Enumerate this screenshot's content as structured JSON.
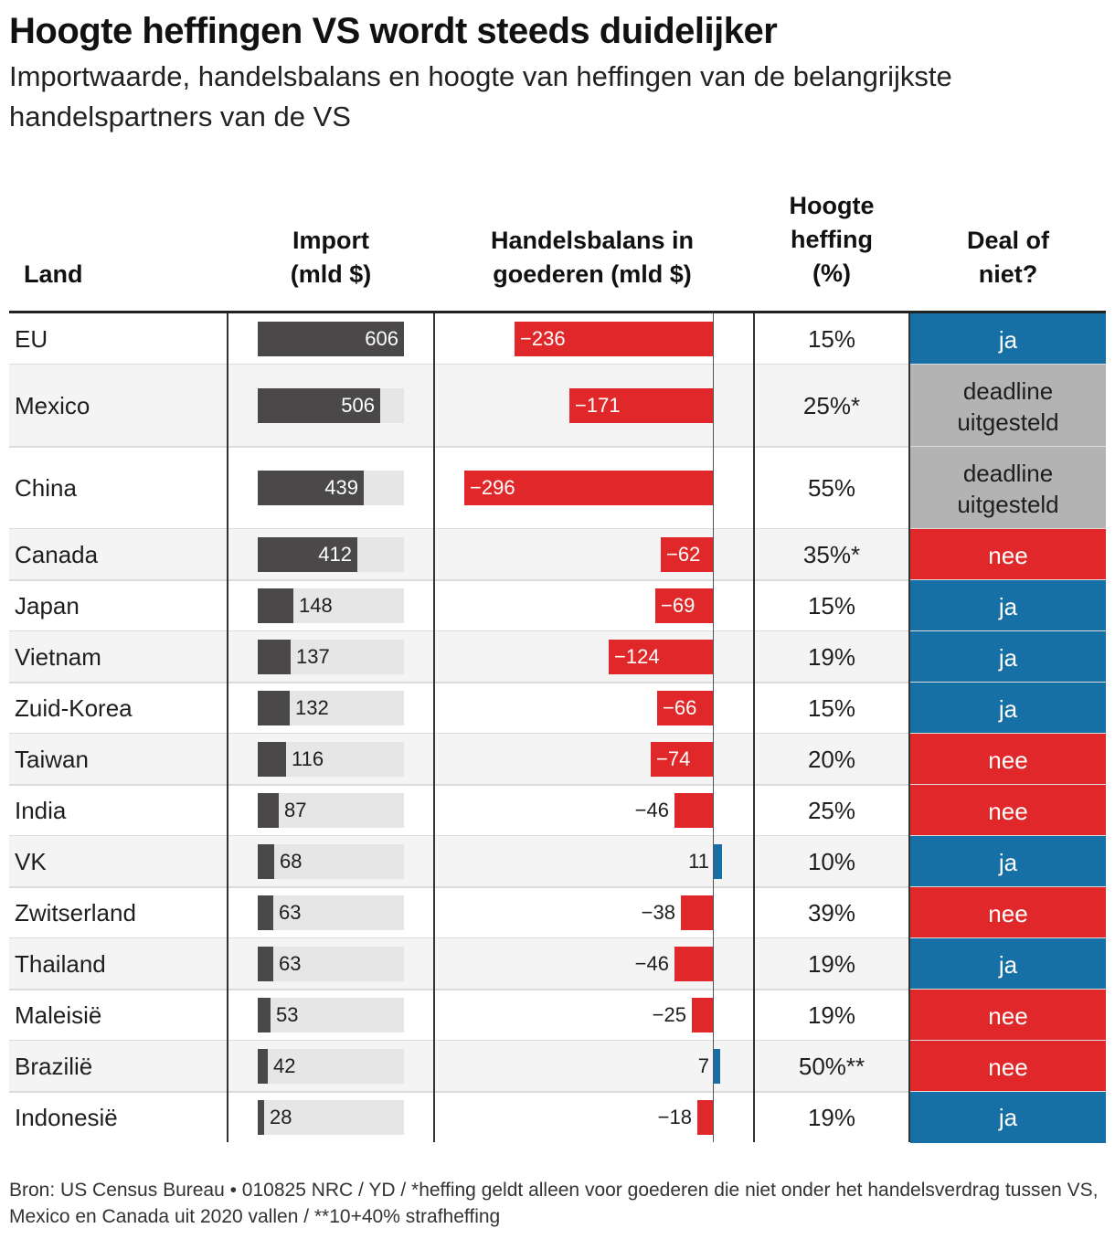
{
  "title": "Hoogte heffingen VS wordt steeds duidelijker",
  "subtitle": "Importwaarde, handelsbalans en hoogte van heffingen van de belangrijkste handelspartners van de VS",
  "headers": {
    "land": "Land",
    "import": [
      "Import",
      "(mld $)"
    ],
    "balans": [
      "Handelsbalans in",
      "goederen (mld $)"
    ],
    "heffing": [
      "Hoogte",
      "heffing",
      "(%)"
    ],
    "deal": [
      "Deal of",
      "niet?"
    ]
  },
  "footer": "Bron: US Census Bureau  •  010825 NRC / YD / *heffing geldt alleen voor goederen die niet onder het handelsverdrag tussen VS, Mexico en Canada uit 2020 vallen / **10+40% strafheffing",
  "colors": {
    "import_bar": "#4a4849",
    "import_track": "#e6e6e6",
    "balance_negative": "#e0282a",
    "balance_positive": "#1670a6",
    "deal_ja": "#1670a6",
    "deal_nee": "#e0282a",
    "deal_deadline": "#b4b3b4"
  },
  "chart_data": {
    "type": "table",
    "import_max": 606,
    "balance_range": [
      -296,
      11
    ],
    "rows": [
      {
        "land": "EU",
        "import": 606,
        "import_label": "606",
        "balance": -236,
        "balance_label": "−236",
        "tariff": "15%",
        "deal": "ja",
        "deal_status": "ja"
      },
      {
        "land": "Mexico",
        "import": 506,
        "import_label": "506",
        "balance": -171,
        "balance_label": "−171",
        "tariff": "25%*",
        "deal": [
          "deadline",
          "uitgesteld"
        ],
        "deal_status": "deadline"
      },
      {
        "land": "China",
        "import": 439,
        "import_label": "439",
        "balance": -296,
        "balance_label": "−296",
        "tariff": "55%",
        "deal": [
          "deadline",
          "uitgesteld"
        ],
        "deal_status": "deadline"
      },
      {
        "land": "Canada",
        "import": 412,
        "import_label": "412",
        "balance": -62,
        "balance_label": "−62",
        "tariff": "35%*",
        "deal": "nee",
        "deal_status": "nee"
      },
      {
        "land": "Japan",
        "import": 148,
        "import_label": "148",
        "balance": -69,
        "balance_label": "−69",
        "tariff": "15%",
        "deal": "ja",
        "deal_status": "ja"
      },
      {
        "land": "Vietnam",
        "import": 137,
        "import_label": "137",
        "balance": -124,
        "balance_label": "−124",
        "tariff": "19%",
        "deal": "ja",
        "deal_status": "ja"
      },
      {
        "land": "Zuid-Korea",
        "import": 132,
        "import_label": "132",
        "balance": -66,
        "balance_label": "−66",
        "tariff": "15%",
        "deal": "ja",
        "deal_status": "ja"
      },
      {
        "land": "Taiwan",
        "import": 116,
        "import_label": "116",
        "balance": -74,
        "balance_label": "−74",
        "tariff": "20%",
        "deal": "nee",
        "deal_status": "nee"
      },
      {
        "land": "India",
        "import": 87,
        "import_label": "87",
        "balance": -46,
        "balance_label": "−46",
        "tariff": "25%",
        "deal": "nee",
        "deal_status": "nee"
      },
      {
        "land": "VK",
        "import": 68,
        "import_label": "68",
        "balance": 11,
        "balance_label": "11",
        "tariff": "10%",
        "deal": "ja",
        "deal_status": "ja"
      },
      {
        "land": "Zwitserland",
        "import": 63,
        "import_label": "63",
        "balance": -38,
        "balance_label": "−38",
        "tariff": "39%",
        "deal": "nee",
        "deal_status": "nee"
      },
      {
        "land": "Thailand",
        "import": 63,
        "import_label": "63",
        "balance": -46,
        "balance_label": "−46",
        "tariff": "19%",
        "deal": "ja",
        "deal_status": "ja"
      },
      {
        "land": "Maleisië",
        "import": 53,
        "import_label": "53",
        "balance": -25,
        "balance_label": "−25",
        "tariff": "19%",
        "deal": "nee",
        "deal_status": "nee"
      },
      {
        "land": "Brazilië",
        "import": 42,
        "import_label": "42",
        "balance": 7,
        "balance_label": "7",
        "tariff": "50%**",
        "deal": "nee",
        "deal_status": "nee"
      },
      {
        "land": "Indonesië",
        "import": 28,
        "import_label": "28",
        "balance": -18,
        "balance_label": "−18",
        "tariff": "19%",
        "deal": "ja",
        "deal_status": "ja"
      }
    ]
  }
}
